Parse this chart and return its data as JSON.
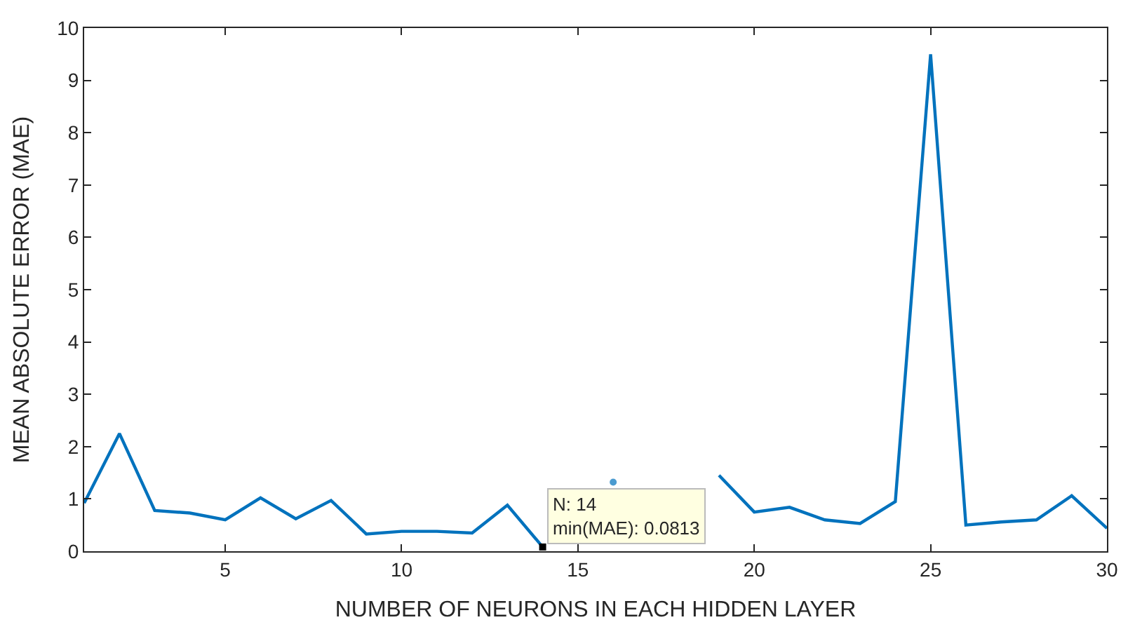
{
  "chart_data": {
    "type": "line",
    "xlabel": "NUMBER OF NEURONS IN EACH HIDDEN LAYER",
    "ylabel": "MEAN ABSOLUTE ERROR (MAE)",
    "x": [
      1,
      2,
      3,
      4,
      5,
      6,
      7,
      8,
      9,
      10,
      11,
      12,
      13,
      14,
      15,
      16,
      17,
      18,
      19,
      20,
      21,
      22,
      23,
      24,
      25,
      26,
      27,
      28,
      29,
      30
    ],
    "series": [
      {
        "color": "#0072bd",
        "values": [
          0.92,
          2.25,
          0.78,
          0.73,
          0.6,
          1.02,
          0.62,
          0.97,
          0.33,
          0.38,
          0.38,
          0.35,
          0.88,
          0.0813,
          null,
          1.32,
          null,
          null,
          1.45,
          0.75,
          0.84,
          0.6,
          0.53,
          0.95,
          9.5,
          0.5,
          0.56,
          0.6,
          1.06,
          0.44
        ]
      }
    ],
    "xlim": [
      1,
      30
    ],
    "xticks": [
      5,
      10,
      15,
      20,
      25,
      30
    ],
    "ylim": [
      0,
      10
    ],
    "yticks": [
      0,
      1,
      2,
      3,
      4,
      5,
      6,
      7,
      8,
      9,
      10
    ],
    "annotations": [
      {
        "text": "N: 14\nmin(MAE): 0.0813",
        "x": 14,
        "y": 0.0813
      }
    ],
    "marker": "none",
    "line_style": "solid"
  }
}
